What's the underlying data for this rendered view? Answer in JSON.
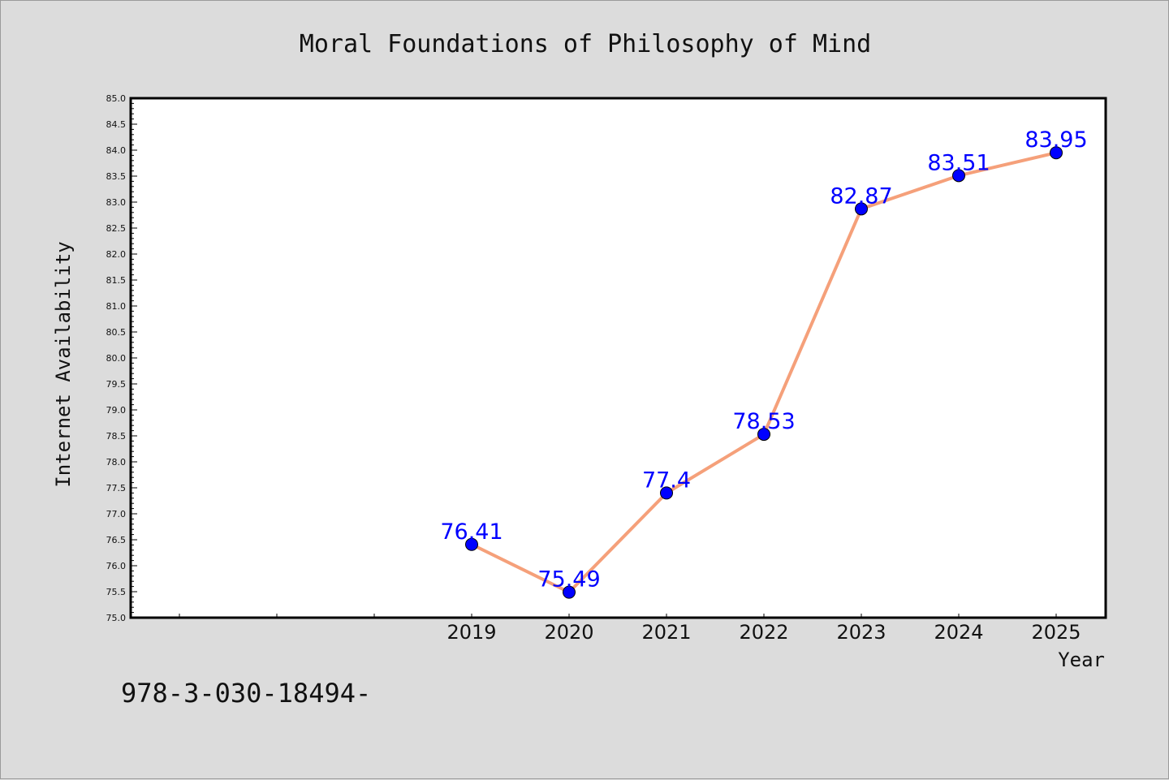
{
  "chart_data": {
    "type": "line",
    "title": "Moral Foundations of Philosophy of Mind",
    "xlabel": "Year",
    "ylabel": "Internet Availability",
    "x": [
      "2019",
      "2020",
      "2021",
      "2022",
      "2023",
      "2024",
      "2025"
    ],
    "series": [
      {
        "values": [
          76.41,
          75.49,
          77.4,
          78.53,
          82.87,
          83.51,
          83.95
        ],
        "labels": [
          "76.41",
          "75.49",
          "77.4",
          "78.53",
          "82.87",
          "83.51",
          "83.95"
        ]
      }
    ],
    "ylim": [
      75.0,
      85.0
    ],
    "yticks": [
      "75.0",
      "75.5",
      "76.0",
      "76.5",
      "77.0",
      "77.5",
      "78.0",
      "78.5",
      "79.0",
      "79.5",
      "80.0",
      "80.5",
      "81.0",
      "81.5",
      "82.0",
      "82.5",
      "83.0",
      "83.5",
      "84.0",
      "84.5",
      "85.0"
    ],
    "grid": false,
    "line_color": "#f5a07a",
    "marker_color": "#0000ff",
    "label_color": "#0000ff"
  },
  "footer": {
    "text": "978-3-030-18494-"
  }
}
